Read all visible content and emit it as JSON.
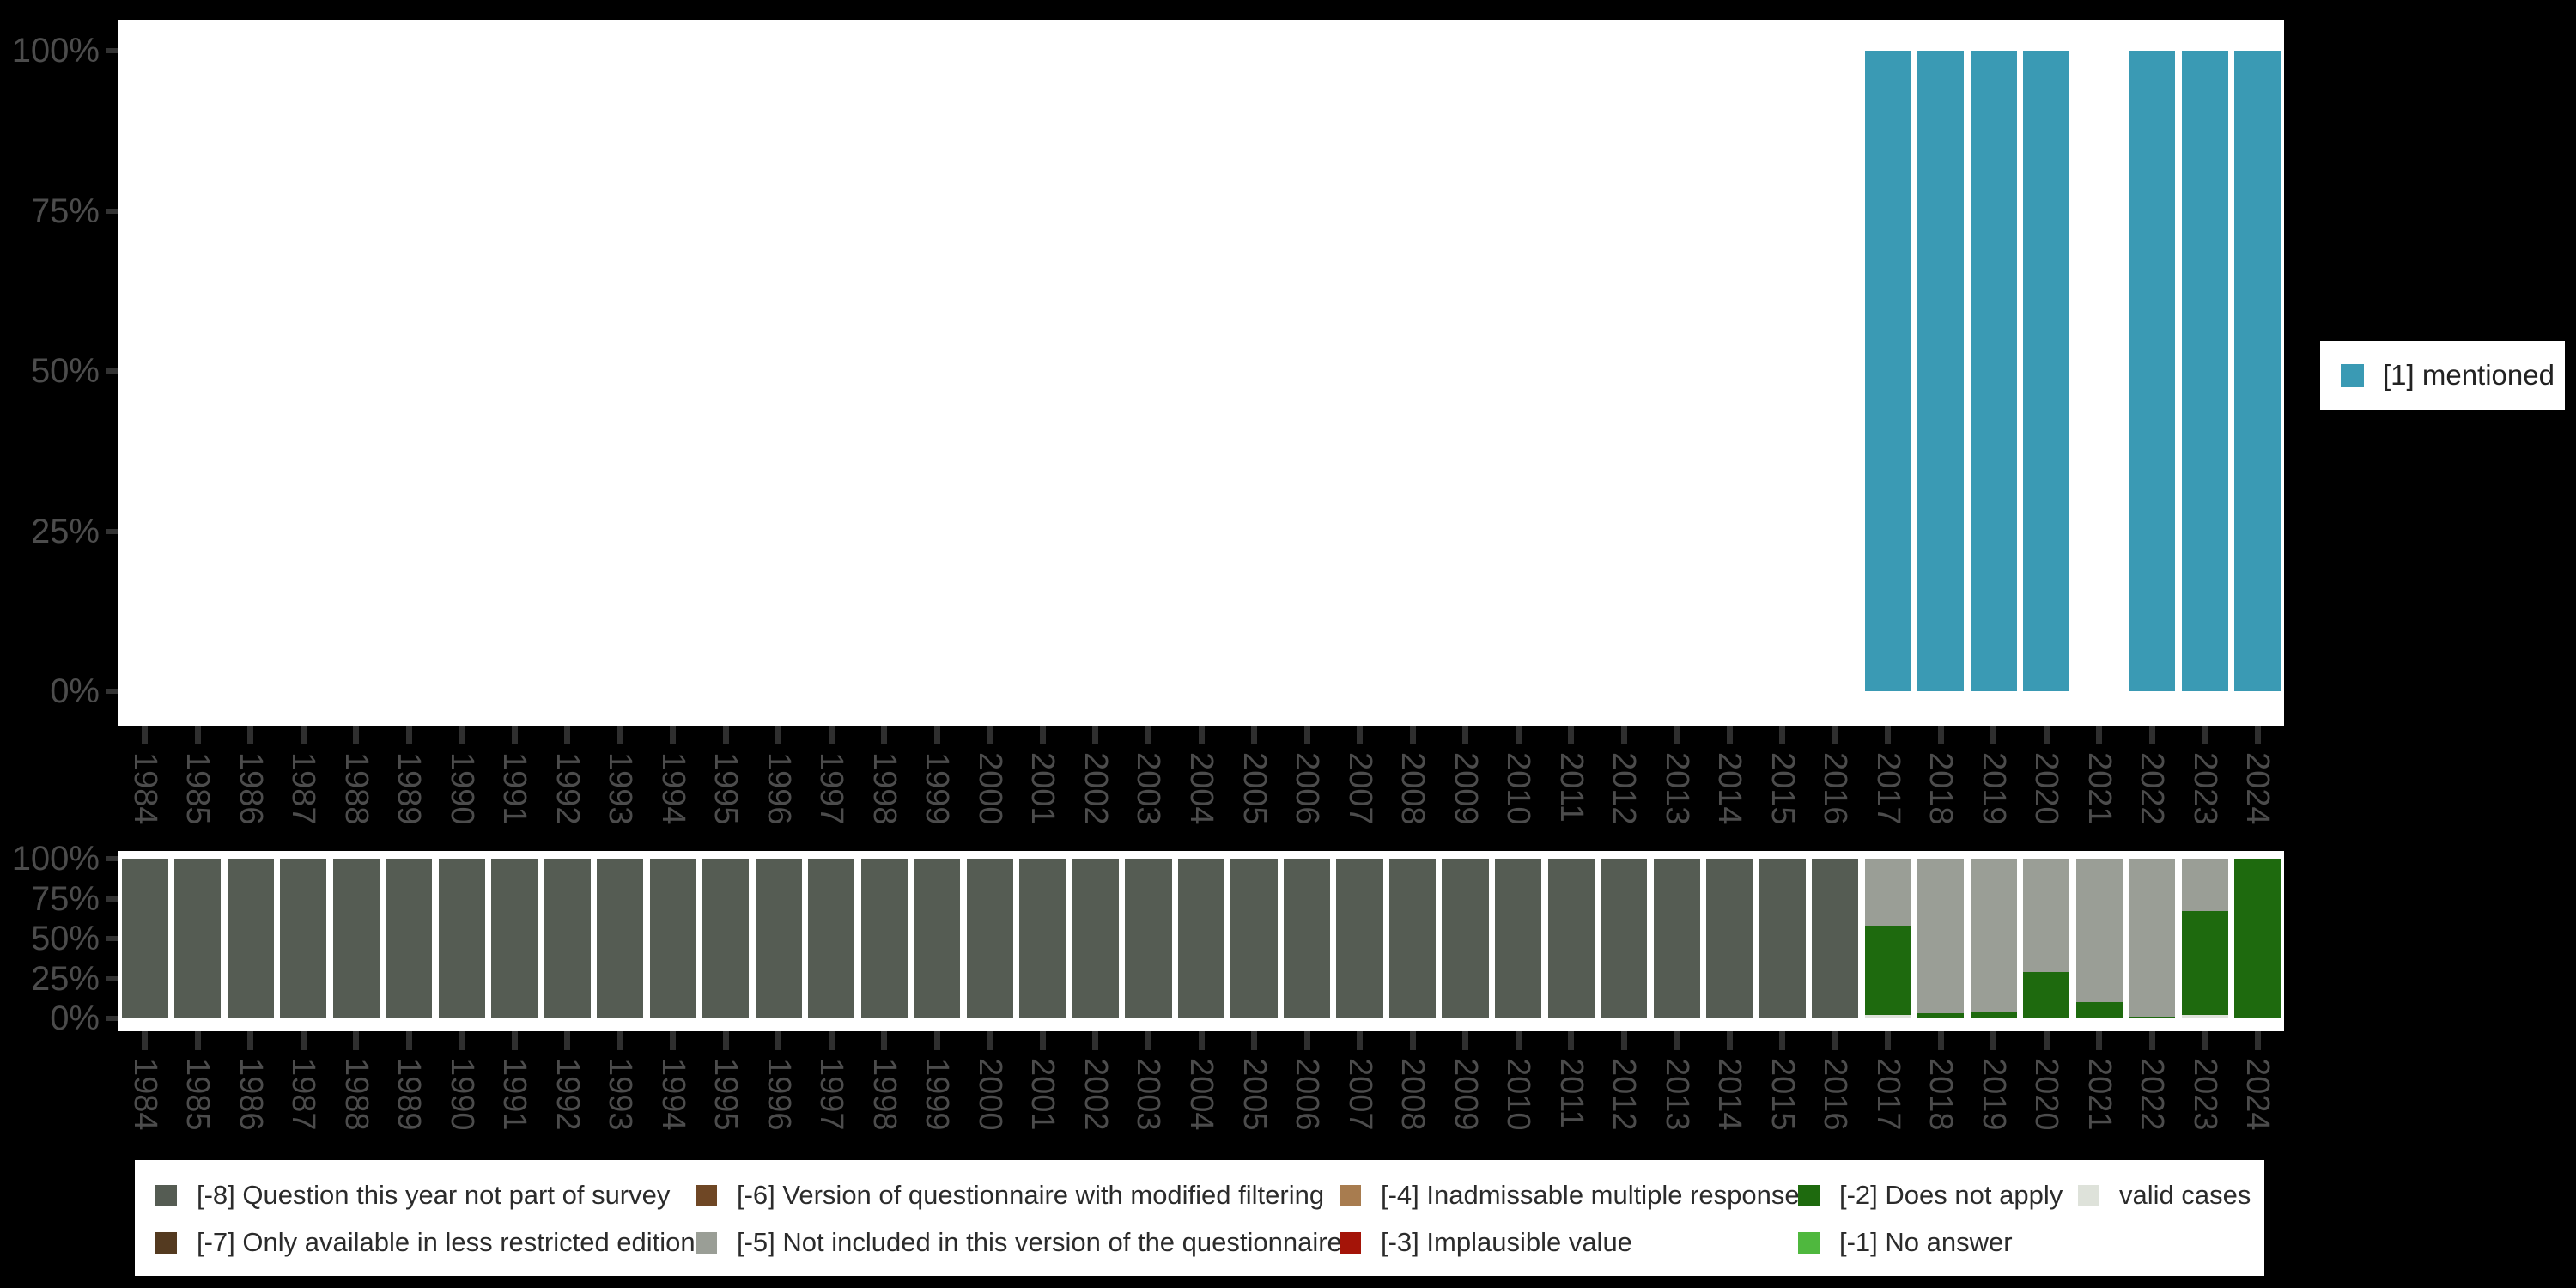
{
  "background": "#000000",
  "palette": {
    "mentioned": "#3a9ab4",
    "-8": "#555c53",
    "-7": "#543a20",
    "-6": "#6f4725",
    "-5": "#9a9e96",
    "-4": "#a87c4f",
    "-3": "#a41408",
    "-2": "#1e6a0e",
    "-1": "#4fb83e",
    "valid": "#dee2da"
  },
  "axis": {
    "label_color": "#4c4c4c",
    "tick_color": "#333333"
  },
  "legend_top": {
    "label": "[1] mentioned",
    "color_key": "mentioned"
  },
  "legend_bottom": {
    "items": [
      {
        "key": "-8",
        "label": "[-8] Question this year not part of survey",
        "row": 0,
        "col": 0
      },
      {
        "key": "-7",
        "label": "[-7] Only available in less restricted edition",
        "row": 1,
        "col": 0
      },
      {
        "key": "-6",
        "label": "[-6] Version of questionnaire with modified filtering",
        "row": 0,
        "col": 1
      },
      {
        "key": "-5",
        "label": "[-5] Not included in this version of the questionnaire",
        "row": 1,
        "col": 1
      },
      {
        "key": "-4",
        "label": "[-4] Inadmissable multiple response",
        "row": 0,
        "col": 2
      },
      {
        "key": "-3",
        "label": "[-3] Implausible value",
        "row": 1,
        "col": 2
      },
      {
        "key": "-2",
        "label": "[-2] Does not apply",
        "row": 0,
        "col": 3
      },
      {
        "key": "-1",
        "label": "[-1] No answer",
        "row": 1,
        "col": 3
      },
      {
        "key": "valid",
        "label": "valid cases",
        "row": 0,
        "col": 4
      }
    ]
  },
  "chart_data": [
    {
      "id": "percent-mentioned-by-year",
      "type": "bar",
      "title": "",
      "xlabel": "",
      "ylabel": "",
      "ylim": [
        0,
        100
      ],
      "grid": false,
      "legend_position": "right",
      "yticks_pct": [
        100,
        75,
        50,
        25,
        0
      ],
      "ytick_labels": [
        "100%",
        "75%",
        "50%",
        "25%",
        "0%"
      ],
      "categories": [
        "1984",
        "1985",
        "1986",
        "1987",
        "1988",
        "1989",
        "1990",
        "1991",
        "1992",
        "1993",
        "1994",
        "1995",
        "1996",
        "1997",
        "1998",
        "1999",
        "2000",
        "2001",
        "2002",
        "2003",
        "2004",
        "2005",
        "2006",
        "2007",
        "2008",
        "2009",
        "2010",
        "2011",
        "2012",
        "2013",
        "2014",
        "2015",
        "2016",
        "2017",
        "2018",
        "2019",
        "2020",
        "2021",
        "2022",
        "2023",
        "2024"
      ],
      "series": [
        {
          "name": "[1] mentioned",
          "color_key": "mentioned",
          "values": [
            null,
            null,
            null,
            null,
            null,
            null,
            null,
            null,
            null,
            null,
            null,
            null,
            null,
            null,
            null,
            null,
            null,
            null,
            null,
            null,
            null,
            null,
            null,
            null,
            null,
            null,
            null,
            null,
            null,
            null,
            null,
            null,
            null,
            100,
            100,
            100,
            100,
            null,
            100,
            100,
            100
          ]
        }
      ]
    },
    {
      "id": "missing-values-by-year",
      "type": "stacked-bar",
      "title": "",
      "xlabel": "",
      "ylabel": "",
      "ylim": [
        0,
        100
      ],
      "grid": false,
      "legend_position": "bottom",
      "yticks_pct": [
        100,
        75,
        50,
        25,
        0
      ],
      "ytick_labels": [
        "100%",
        "75%",
        "50%",
        "25%",
        "0%"
      ],
      "stack_order": "bottom-to-top",
      "categories": [
        "1984",
        "1985",
        "1986",
        "1987",
        "1988",
        "1989",
        "1990",
        "1991",
        "1992",
        "1993",
        "1994",
        "1995",
        "1996",
        "1997",
        "1998",
        "1999",
        "2000",
        "2001",
        "2002",
        "2003",
        "2004",
        "2005",
        "2006",
        "2007",
        "2008",
        "2009",
        "2010",
        "2011",
        "2012",
        "2013",
        "2014",
        "2015",
        "2016",
        "2017",
        "2018",
        "2019",
        "2020",
        "2021",
        "2022",
        "2023",
        "2024"
      ],
      "stacks": [
        [
          [
            "-8",
            100
          ]
        ],
        [
          [
            "-8",
            100
          ]
        ],
        [
          [
            "-8",
            100
          ]
        ],
        [
          [
            "-8",
            100
          ]
        ],
        [
          [
            "-8",
            100
          ]
        ],
        [
          [
            "-8",
            100
          ]
        ],
        [
          [
            "-8",
            100
          ]
        ],
        [
          [
            "-8",
            100
          ]
        ],
        [
          [
            "-8",
            100
          ]
        ],
        [
          [
            "-8",
            100
          ]
        ],
        [
          [
            "-8",
            100
          ]
        ],
        [
          [
            "-8",
            100
          ]
        ],
        [
          [
            "-8",
            100
          ]
        ],
        [
          [
            "-8",
            100
          ]
        ],
        [
          [
            "-8",
            100
          ]
        ],
        [
          [
            "-8",
            100
          ]
        ],
        [
          [
            "-8",
            100
          ]
        ],
        [
          [
            "-8",
            100
          ]
        ],
        [
          [
            "-8",
            100
          ]
        ],
        [
          [
            "-8",
            100
          ]
        ],
        [
          [
            "-8",
            100
          ]
        ],
        [
          [
            "-8",
            100
          ]
        ],
        [
          [
            "-8",
            100
          ]
        ],
        [
          [
            "-8",
            100
          ]
        ],
        [
          [
            "-8",
            100
          ]
        ],
        [
          [
            "-8",
            100
          ]
        ],
        [
          [
            "-8",
            100
          ]
        ],
        [
          [
            "-8",
            100
          ]
        ],
        [
          [
            "-8",
            100
          ]
        ],
        [
          [
            "-8",
            100
          ]
        ],
        [
          [
            "-8",
            100
          ]
        ],
        [
          [
            "-8",
            100
          ]
        ],
        [
          [
            "-8",
            100
          ]
        ],
        [
          [
            "valid",
            2
          ],
          [
            "-2",
            56
          ],
          [
            "-5",
            42
          ]
        ],
        [
          [
            "-2",
            3
          ],
          [
            "-5",
            97
          ]
        ],
        [
          [
            "-2",
            4
          ],
          [
            "-5",
            96
          ]
        ],
        [
          [
            "-2",
            29
          ],
          [
            "-5",
            71
          ]
        ],
        [
          [
            "-2",
            10
          ],
          [
            "-5",
            90
          ]
        ],
        [
          [
            "-2",
            1
          ],
          [
            "-5",
            99
          ]
        ],
        [
          [
            "valid",
            2
          ],
          [
            "-2",
            65
          ],
          [
            "-5",
            33
          ]
        ],
        [
          [
            "-2",
            100
          ]
        ]
      ]
    }
  ]
}
